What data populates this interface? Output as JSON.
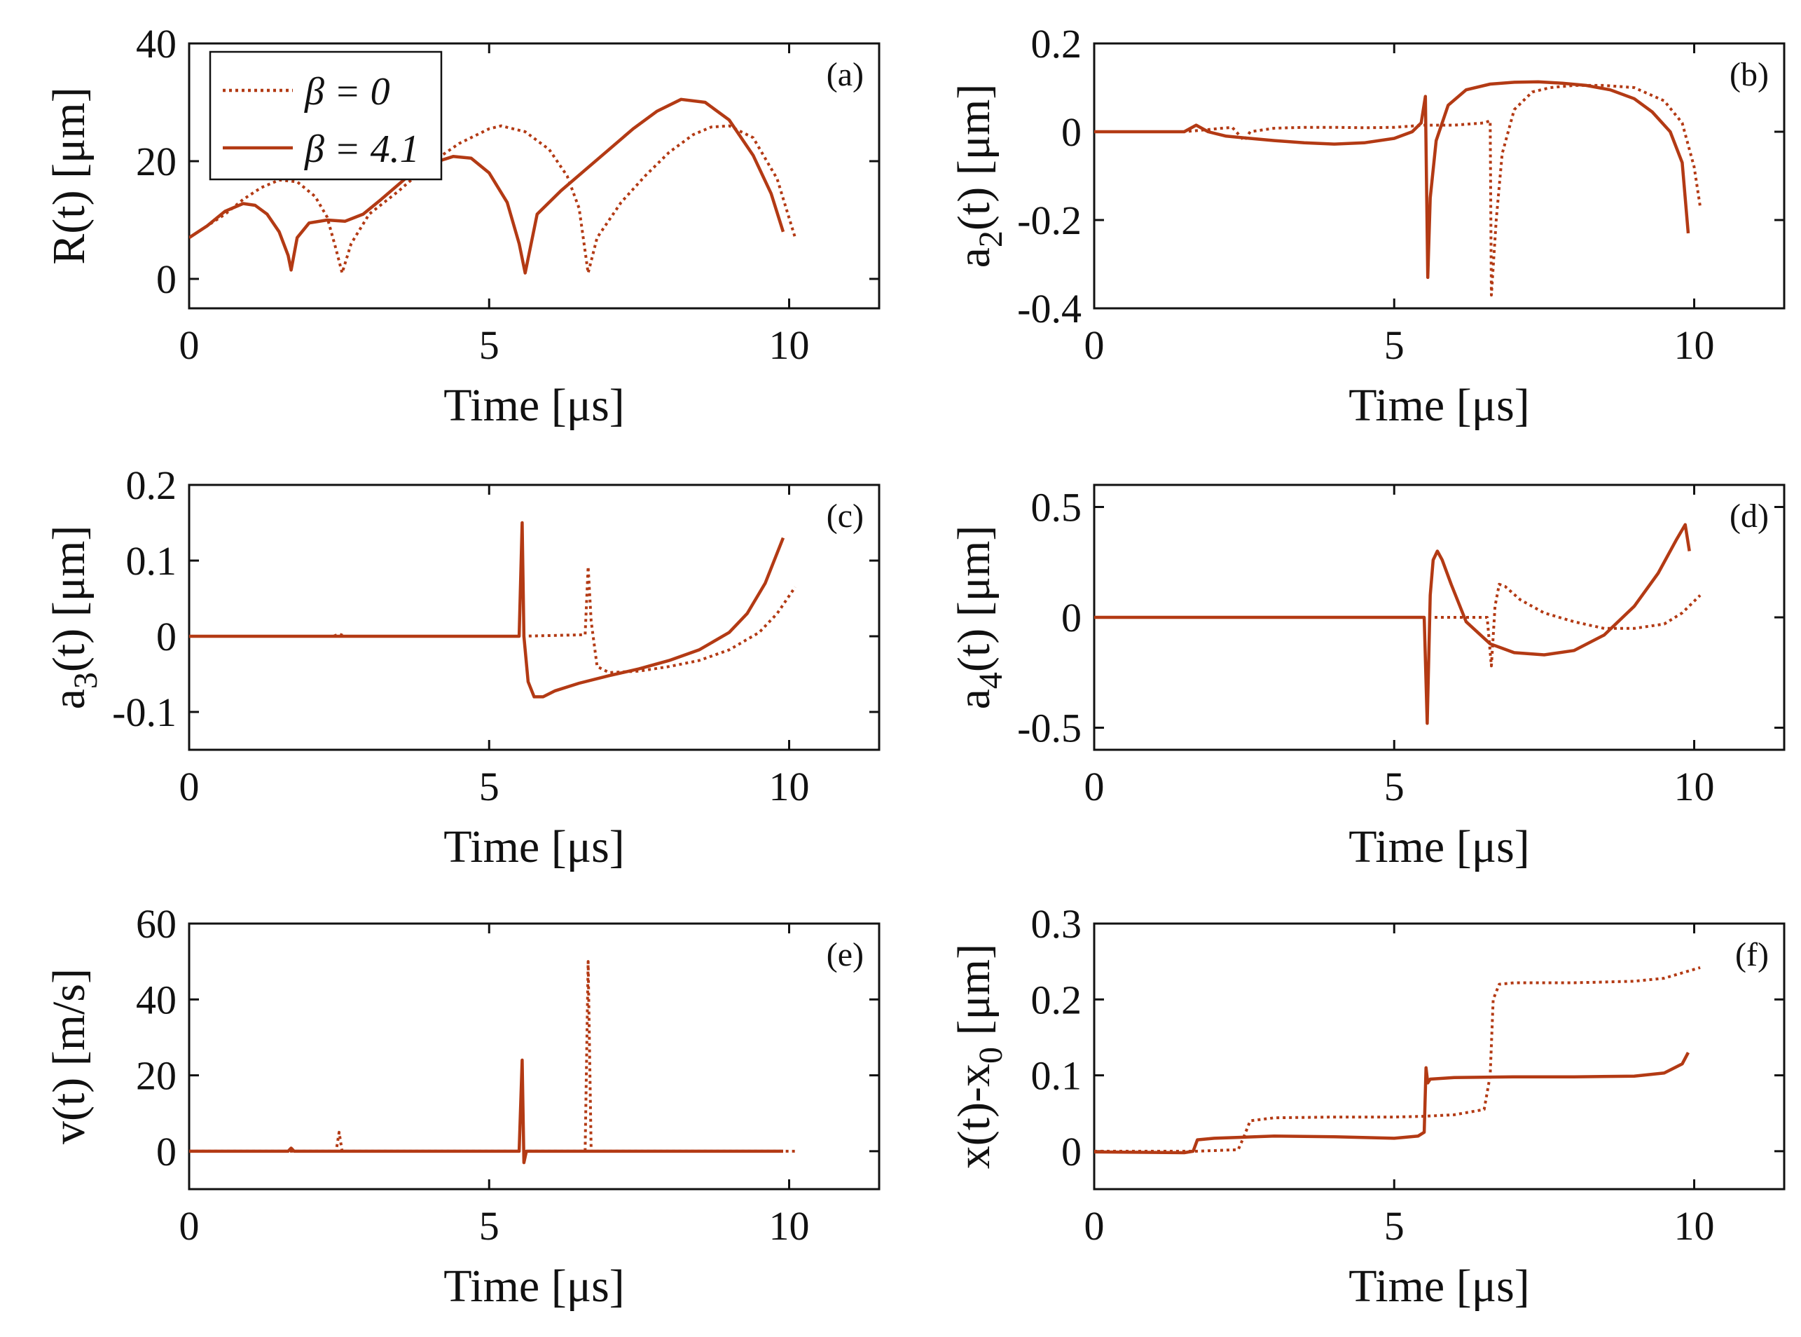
{
  "chart_data": [
    {
      "id": "a",
      "type": "line",
      "panel_label": "(a)",
      "xlabel": "Time [μs]",
      "ylabel_main": "R(t) [",
      "ylabel_sub": "",
      "ylabel_tail": "μm]",
      "xlim": [
        0,
        11.5
      ],
      "ylim": [
        -5,
        40
      ],
      "xticks": [
        0,
        5,
        10
      ],
      "xtick_labels": [
        "0",
        "5",
        "10"
      ],
      "yticks": [
        0,
        20,
        40
      ],
      "ytick_labels": [
        "0",
        "20",
        "40"
      ],
      "legend": {
        "position": "top-left",
        "entries": [
          {
            "label": "β = 0",
            "style": "dotted"
          },
          {
            "label": "β = 4.1",
            "style": "solid"
          }
        ]
      },
      "series": [
        {
          "style": "dotted",
          "x": [
            0,
            0.3,
            0.6,
            0.9,
            1.2,
            1.5,
            1.8,
            2.1,
            2.3,
            2.45,
            2.55,
            2.7,
            3.0,
            3.5,
            4.0,
            4.5,
            5.0,
            5.2,
            5.6,
            6.0,
            6.3,
            6.5,
            6.65,
            6.8,
            7.2,
            7.6,
            8.0,
            8.4,
            8.7,
            9.0,
            9.4,
            9.8,
            10.1
          ],
          "y": [
            7,
            9,
            11,
            13.5,
            15.5,
            16.8,
            16.5,
            14,
            10.5,
            5,
            1,
            6,
            11,
            15,
            19.5,
            23,
            25.5,
            26,
            25,
            22,
            17.5,
            12,
            1,
            7,
            13,
            17.5,
            21.5,
            24.5,
            25.8,
            26,
            24,
            17,
            7
          ]
        },
        {
          "style": "solid",
          "x": [
            0,
            0.3,
            0.6,
            0.9,
            1.1,
            1.3,
            1.5,
            1.65,
            1.7,
            1.8,
            2.0,
            2.3,
            2.6,
            2.9,
            3.2,
            3.6,
            4.0,
            4.4,
            4.7,
            5.0,
            5.3,
            5.5,
            5.6,
            5.8,
            6.2,
            6.6,
            7.0,
            7.4,
            7.8,
            8.2,
            8.6,
            9.0,
            9.4,
            9.7,
            9.9
          ],
          "y": [
            7,
            9,
            11.5,
            12.8,
            12.5,
            11,
            8,
            4,
            1.5,
            7,
            9.5,
            10,
            9.8,
            11,
            13.5,
            17,
            19.5,
            20.8,
            20.5,
            18,
            13,
            6,
            1,
            11,
            15,
            18.5,
            22,
            25.5,
            28.5,
            30.5,
            30,
            27,
            21,
            14.5,
            8
          ]
        }
      ]
    },
    {
      "id": "b",
      "type": "line",
      "panel_label": "(b)",
      "xlabel": "Time [μs]",
      "ylabel_main": "a",
      "ylabel_sub": "2",
      "ylabel_tail": "(t) [μm]",
      "xlim": [
        0,
        11.5
      ],
      "ylim": [
        -0.4,
        0.2
      ],
      "xticks": [
        0,
        5,
        10
      ],
      "xtick_labels": [
        "0",
        "5",
        "10"
      ],
      "yticks": [
        -0.4,
        -0.2,
        0,
        0.2
      ],
      "ytick_labels": [
        "-0.4",
        "-0.2",
        "0",
        "0.2"
      ],
      "series": [
        {
          "style": "dotted",
          "x": [
            0,
            1.5,
            2.3,
            2.5,
            2.6,
            3.0,
            3.5,
            4.0,
            4.5,
            5.0,
            5.5,
            6.0,
            6.5,
            6.6,
            6.62,
            6.7,
            6.8,
            7.0,
            7.3,
            7.6,
            8.0,
            8.5,
            9.0,
            9.5,
            9.8,
            10.0,
            10.1
          ],
          "y": [
            0,
            0,
            0.01,
            -0.02,
            0,
            0.008,
            0.01,
            0.01,
            0.009,
            0.01,
            0.015,
            0.015,
            0.02,
            0.025,
            -0.37,
            -0.2,
            -0.05,
            0.05,
            0.09,
            0.1,
            0.105,
            0.105,
            0.1,
            0.07,
            0.02,
            -0.08,
            -0.17
          ]
        },
        {
          "style": "solid",
          "x": [
            0,
            1.5,
            1.7,
            1.9,
            2.2,
            2.6,
            3.0,
            3.5,
            4.0,
            4.5,
            5.0,
            5.3,
            5.45,
            5.52,
            5.56,
            5.6,
            5.7,
            5.9,
            6.2,
            6.6,
            7.0,
            7.4,
            7.8,
            8.2,
            8.6,
            9.0,
            9.3,
            9.6,
            9.8,
            9.9
          ],
          "y": [
            0,
            0,
            0.015,
            0,
            -0.01,
            -0.015,
            -0.02,
            -0.025,
            -0.028,
            -0.025,
            -0.015,
            0,
            0.02,
            0.08,
            -0.33,
            -0.15,
            -0.02,
            0.06,
            0.095,
            0.108,
            0.112,
            0.113,
            0.11,
            0.105,
            0.095,
            0.075,
            0.045,
            0,
            -0.07,
            -0.23
          ]
        }
      ]
    },
    {
      "id": "c",
      "type": "line",
      "panel_label": "(c)",
      "xlabel": "Time [μs]",
      "ylabel_main": "a",
      "ylabel_sub": "3",
      "ylabel_tail": "(t) [μm]",
      "xlim": [
        0,
        11.5
      ],
      "ylim": [
        -0.15,
        0.2
      ],
      "xticks": [
        0,
        5,
        10
      ],
      "xtick_labels": [
        "0",
        "5",
        "10"
      ],
      "yticks": [
        -0.1,
        0,
        0.1,
        0.2
      ],
      "ytick_labels": [
        "-0.1",
        "0",
        "0.1",
        "0.2"
      ],
      "series": [
        {
          "style": "dotted",
          "x": [
            0,
            2.4,
            2.5,
            2.6,
            5.5,
            6.6,
            6.65,
            6.7,
            6.8,
            7.0,
            7.5,
            8.0,
            8.5,
            9.0,
            9.5,
            9.8,
            10.1
          ],
          "y": [
            0,
            0,
            0.003,
            0,
            0,
            0.002,
            0.092,
            0.02,
            -0.04,
            -0.048,
            -0.046,
            -0.04,
            -0.032,
            -0.018,
            0.005,
            0.03,
            0.065
          ]
        },
        {
          "style": "solid",
          "x": [
            0,
            5.5,
            5.55,
            5.58,
            5.65,
            5.75,
            5.9,
            6.1,
            6.5,
            7.0,
            7.5,
            8.0,
            8.5,
            9.0,
            9.3,
            9.6,
            9.9
          ],
          "y": [
            0,
            0,
            0.15,
            0.0,
            -0.06,
            -0.08,
            -0.08,
            -0.072,
            -0.062,
            -0.052,
            -0.043,
            -0.032,
            -0.018,
            0.005,
            0.03,
            0.07,
            0.13
          ]
        }
      ]
    },
    {
      "id": "d",
      "type": "line",
      "panel_label": "(d)",
      "xlabel": "Time [μs]",
      "ylabel_main": "a",
      "ylabel_sub": "4",
      "ylabel_tail": "(t) [μm]",
      "xlim": [
        0,
        11.5
      ],
      "ylim": [
        -0.6,
        0.6
      ],
      "xticks": [
        0,
        5,
        10
      ],
      "xtick_labels": [
        "0",
        "5",
        "10"
      ],
      "yticks": [
        -0.5,
        0,
        0.5
      ],
      "ytick_labels": [
        "-0.5",
        "0",
        "0.5"
      ],
      "series": [
        {
          "style": "dotted",
          "x": [
            0,
            6.55,
            6.62,
            6.68,
            6.75,
            6.85,
            7.1,
            7.5,
            8.0,
            8.5,
            9.0,
            9.5,
            9.8,
            10.1
          ],
          "y": [
            0,
            0,
            -0.22,
            0.05,
            0.15,
            0.14,
            0.08,
            0.02,
            -0.02,
            -0.05,
            -0.05,
            -0.03,
            0.02,
            0.1
          ]
        },
        {
          "style": "solid",
          "x": [
            0,
            5.5,
            5.55,
            5.6,
            5.65,
            5.72,
            5.8,
            5.95,
            6.2,
            6.6,
            7.0,
            7.5,
            8.0,
            8.5,
            9.0,
            9.4,
            9.7,
            9.85,
            9.92
          ],
          "y": [
            0,
            0,
            -0.48,
            0.1,
            0.26,
            0.3,
            0.26,
            0.15,
            -0.02,
            -0.12,
            -0.16,
            -0.17,
            -0.15,
            -0.08,
            0.05,
            0.2,
            0.35,
            0.42,
            0.3
          ]
        }
      ]
    },
    {
      "id": "e",
      "type": "line",
      "panel_label": "(e)",
      "xlabel": "Time [μs]",
      "ylabel_main": "v(t) [m/s]",
      "ylabel_sub": "",
      "ylabel_tail": "",
      "xlim": [
        0,
        11.5
      ],
      "ylim": [
        -10,
        60
      ],
      "xticks": [
        0,
        5,
        10
      ],
      "xtick_labels": [
        "0",
        "5",
        "10"
      ],
      "yticks": [
        0,
        20,
        40,
        60
      ],
      "ytick_labels": [
        "0",
        "20",
        "40",
        "60"
      ],
      "series": [
        {
          "style": "dotted",
          "x": [
            0,
            2.45,
            2.5,
            2.55,
            6.6,
            6.65,
            6.7,
            10.1
          ],
          "y": [
            0,
            0,
            5,
            0,
            0,
            50,
            0,
            0
          ]
        },
        {
          "style": "solid",
          "x": [
            0,
            1.65,
            1.7,
            1.75,
            5.5,
            5.55,
            5.58,
            5.62,
            9.9
          ],
          "y": [
            0,
            0,
            0.8,
            0,
            0,
            24,
            -3,
            0,
            0
          ]
        }
      ]
    },
    {
      "id": "f",
      "type": "line",
      "panel_label": "(f)",
      "xlabel": "Time [μs]",
      "ylabel_main": "x(t)-x",
      "ylabel_sub": "0",
      "ylabel_tail": " [μm]",
      "xlim": [
        0,
        11.5
      ],
      "ylim": [
        -0.05,
        0.3
      ],
      "xticks": [
        0,
        5,
        10
      ],
      "xtick_labels": [
        "0",
        "5",
        "10"
      ],
      "yticks": [
        0,
        0.1,
        0.2,
        0.3
      ],
      "ytick_labels": [
        "0",
        "0.1",
        "0.2",
        "0.3"
      ],
      "series": [
        {
          "style": "dotted",
          "x": [
            0,
            1.7,
            2.4,
            2.5,
            2.6,
            3.0,
            4.0,
            5.0,
            5.5,
            6.0,
            6.5,
            6.6,
            6.65,
            6.75,
            7.0,
            8.0,
            9.0,
            9.5,
            10.1
          ],
          "y": [
            0,
            0,
            0.002,
            0.02,
            0.04,
            0.044,
            0.045,
            0.045,
            0.046,
            0.048,
            0.055,
            0.1,
            0.2,
            0.22,
            0.222,
            0.222,
            0.224,
            0.228,
            0.242
          ]
        },
        {
          "style": "solid",
          "x": [
            0,
            1.5,
            1.65,
            1.72,
            2.0,
            3.0,
            4.0,
            5.0,
            5.4,
            5.5,
            5.53,
            5.56,
            5.6,
            6.0,
            7.0,
            8.0,
            9.0,
            9.5,
            9.8,
            9.9
          ],
          "y": [
            -0.001,
            -0.002,
            0,
            0.015,
            0.017,
            0.02,
            0.019,
            0.017,
            0.02,
            0.025,
            0.11,
            0.09,
            0.095,
            0.097,
            0.098,
            0.098,
            0.099,
            0.103,
            0.115,
            0.13
          ]
        }
      ]
    }
  ]
}
